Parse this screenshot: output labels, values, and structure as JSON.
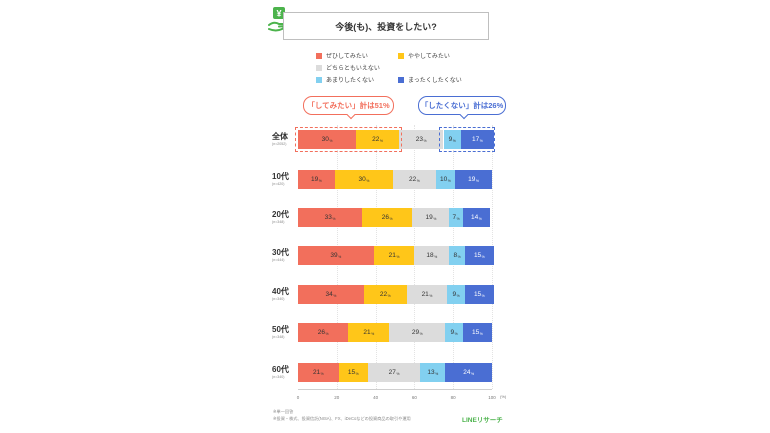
{
  "title": "今後(も)、投資をしたい?",
  "icon": "yen-hand-icon",
  "colors": {
    "want_definitely": "#f26f5c",
    "want_somewhat": "#ffc619",
    "neutral": "#dcdcdc",
    "not_much": "#82d0f0",
    "not_at_all": "#4a6ed3",
    "bubble_positive": "#f26f5c",
    "bubble_negative": "#4a6ed3",
    "brand": "#4cb34c"
  },
  "callouts": {
    "positive": "「してみたい」計は51%",
    "negative": "「したくない」計は26%"
  },
  "chart_data": {
    "type": "bar",
    "orientation": "horizontal-stacked-100",
    "title": "今後(も)、投資をしたい?",
    "categories": [
      "全体",
      "10代",
      "20代",
      "30代",
      "40代",
      "50代",
      "60代"
    ],
    "category_sublabels": [
      "(n=2052)",
      "(n=420)",
      "(n=348)",
      "(n=444)",
      "(n=340)",
      "(n=348)",
      "(n=340)"
    ],
    "series": [
      {
        "name": "ぜひしてみたい",
        "values": [
          30,
          19,
          33,
          39,
          34,
          26,
          21
        ]
      },
      {
        "name": "ややしてみたい",
        "values": [
          22,
          30,
          26,
          21,
          22,
          21,
          15
        ]
      },
      {
        "name": "どちらともいえない",
        "values": [
          23,
          22,
          19,
          18,
          21,
          29,
          27
        ]
      },
      {
        "name": "あまりしたくない",
        "values": [
          9,
          10,
          7,
          8,
          9,
          9,
          13
        ]
      },
      {
        "name": "まったくしたくない",
        "values": [
          17,
          19,
          14,
          15,
          15,
          15,
          24
        ]
      }
    ],
    "value_suffix": "%",
    "xlim": [
      0,
      100
    ],
    "xticks": [
      "0",
      "20",
      "40",
      "60",
      "80",
      "100"
    ],
    "x_unit": "(%)",
    "legend_position": "top"
  },
  "footnotes": [
    "※単一回答",
    "※投資・株式、投資信託(NISA)、FX、iDeCoなどの投資商品の取引や運用"
  ],
  "brand": "LINEリサーチ"
}
